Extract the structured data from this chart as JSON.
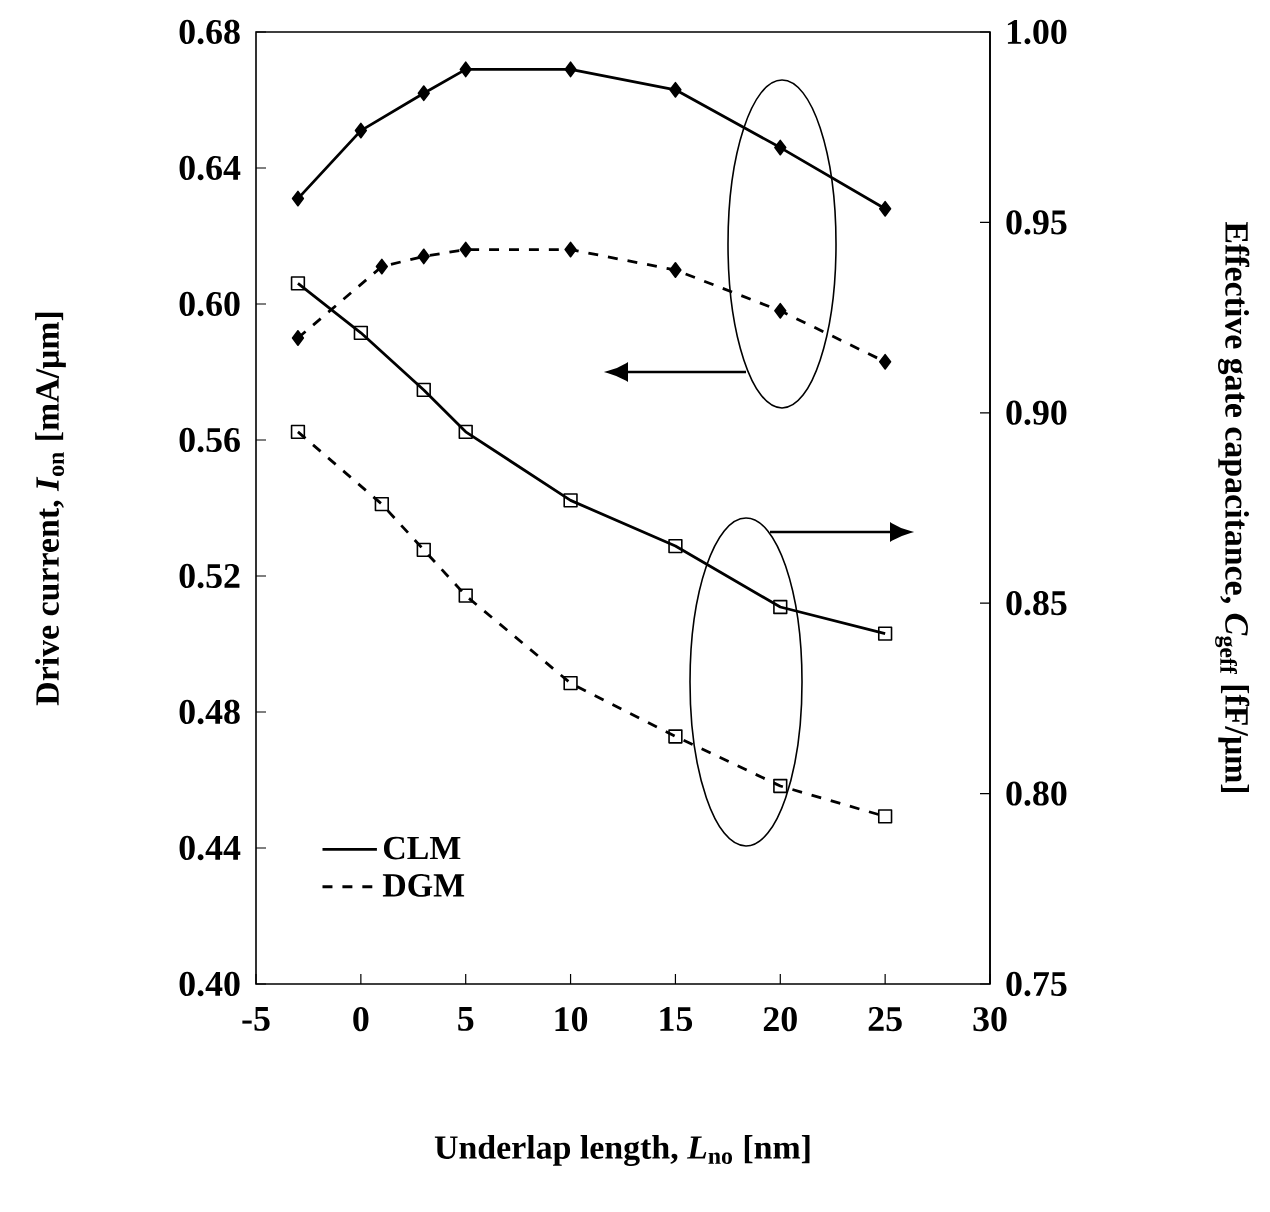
{
  "chart_data": {
    "type": "line",
    "xlabel": "Underlap length, *L*$_{no}$ [nm]",
    "ylabel": "Drive current, *I*$_{on}$ [mA/μm]",
    "y2label": "Effective gate capacitance, *C*$_{geff}$ [fF/μm]",
    "xlim": [
      -5,
      30
    ],
    "xticks": [
      -5,
      0,
      5,
      10,
      15,
      20,
      25,
      30
    ],
    "ylim": [
      0.4,
      0.68
    ],
    "yticks": [
      {
        "value": 0.4,
        "label": "0.40"
      },
      {
        "value": 0.44,
        "label": "0.44"
      },
      {
        "value": 0.48,
        "label": "0.48"
      },
      {
        "value": 0.52,
        "label": "0.52"
      },
      {
        "value": 0.56,
        "label": "0.56"
      },
      {
        "value": 0.6,
        "label": "0.60"
      },
      {
        "value": 0.64,
        "label": "0.64"
      },
      {
        "value": 0.68,
        "label": "0.68"
      }
    ],
    "y2lim": [
      0.75,
      1.0
    ],
    "y2ticks": [
      {
        "value": 0.75,
        "label": "0.75"
      },
      {
        "value": 0.8,
        "label": "0.80"
      },
      {
        "value": 0.85,
        "label": "0.85"
      },
      {
        "value": 0.9,
        "label": "0.90"
      },
      {
        "value": 0.95,
        "label": "0.95"
      },
      {
        "value": 1.0,
        "label": "1.00"
      }
    ],
    "legend": "bottom left",
    "series": [
      {
        "name": "CLM",
        "color": "#000000",
        "marker": "diamond",
        "line_style": "solid",
        "axis": "y",
        "x": [
          -3,
          0,
          3,
          5,
          10,
          15,
          20,
          25
        ],
        "values": [
          0.631,
          0.651,
          0.662,
          0.669,
          0.669,
          0.663,
          0.646,
          0.628
        ]
      },
      {
        "name": "DGM",
        "color": "#000000",
        "marker": "diamond",
        "line_style": "dashed",
        "axis": "y",
        "x": [
          -3,
          1,
          3,
          5,
          10,
          15,
          20,
          25
        ],
        "values": [
          0.59,
          0.611,
          0.614,
          0.616,
          0.616,
          0.61,
          0.598,
          0.583
        ]
      },
      {
        "color": "#000000",
        "marker": "square",
        "line_style": "solid",
        "axis": "y2",
        "x": [
          -3,
          0,
          3,
          5,
          10,
          15,
          20,
          25
        ],
        "values": [
          0.934,
          0.921,
          0.906,
          0.895,
          0.877,
          0.865,
          0.849,
          0.842
        ]
      },
      {
        "color": "#000000",
        "marker": "square",
        "line_style": "dashed",
        "axis": "y2",
        "x": [
          -3,
          1,
          3,
          5,
          10,
          15,
          20,
          25
        ],
        "values": [
          0.895,
          0.876,
          0.864,
          0.852,
          0.829,
          0.815,
          0.802,
          0.794
        ]
      }
    ]
  }
}
